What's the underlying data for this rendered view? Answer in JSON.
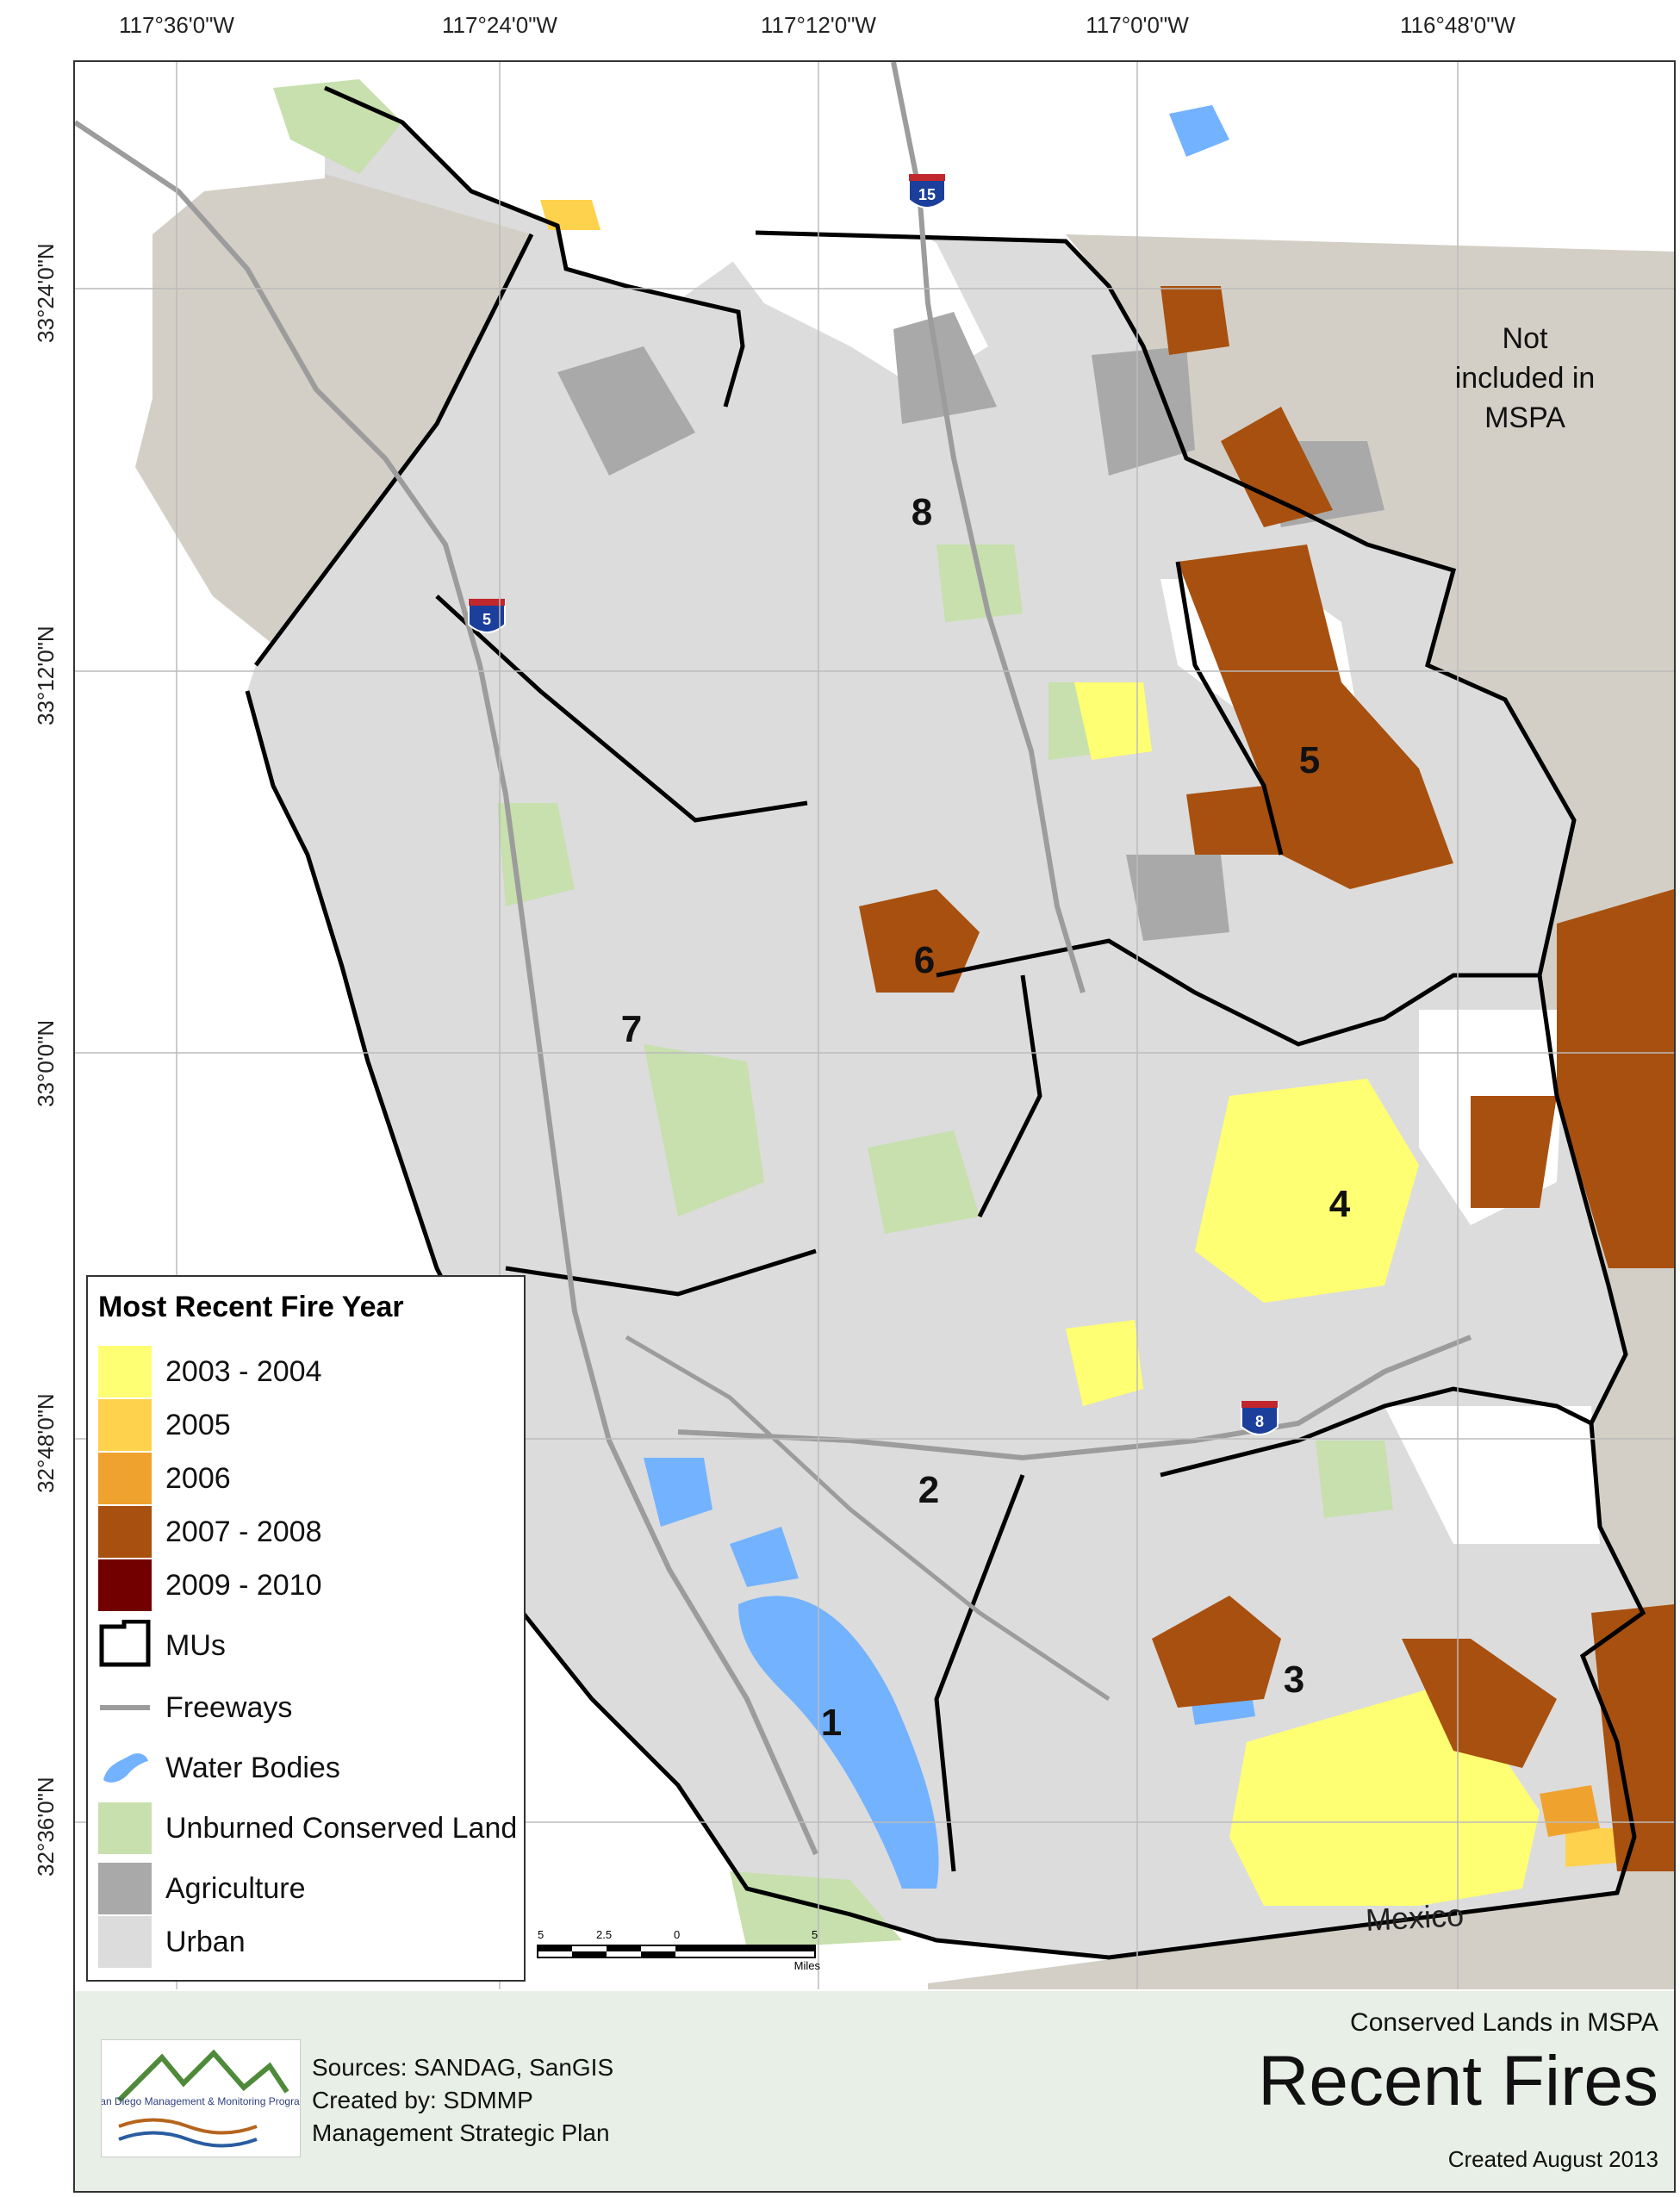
{
  "map": {
    "longitude_labels": [
      "117°36'0\"W",
      "117°24'0\"W",
      "117°12'0\"W",
      "117°0'0\"W",
      "116°48'0\"W"
    ],
    "latitude_labels": [
      "33°24'0\"N",
      "33°12'0\"N",
      "33°0'0\"N",
      "32°48'0\"N",
      "32°36'0\"N"
    ],
    "management_units": [
      "1",
      "2",
      "3",
      "4",
      "5",
      "6",
      "7",
      "8"
    ],
    "freeway_shields": [
      "15",
      "5",
      "8"
    ],
    "not_included_note": "Not included in MSPA",
    "mexico_label": "Mexico"
  },
  "legend": {
    "title": "Most Recent Fire Year",
    "items": [
      {
        "label": "2003 - 2004",
        "color": "#ffff73"
      },
      {
        "label": "2005",
        "color": "#ffd24d"
      },
      {
        "label": "2006",
        "color": "#f0a22f"
      },
      {
        "label": "2007 - 2008",
        "color": "#a8500f"
      },
      {
        "label": "2009 - 2010",
        "color": "#730000"
      },
      {
        "label": "MUs",
        "icon": "mu-boundary-icon"
      },
      {
        "label": "Freeways",
        "icon": "freeway-line-icon",
        "color": "#9c9c9c"
      },
      {
        "label": "Water Bodies",
        "icon": "water-body-icon",
        "color": "#73b2ff"
      },
      {
        "label": "Unburned Conserved Land",
        "color": "#c7e0ad"
      },
      {
        "label": "Agriculture",
        "color": "#a9a9a9"
      },
      {
        "label": "Urban",
        "color": "#dcdcdc"
      }
    ]
  },
  "scale": {
    "ticks": [
      "5",
      "2.5",
      "0",
      "5"
    ],
    "unit": "Miles"
  },
  "footer": {
    "sources": "Sources: SANDAG, SanGIS",
    "created_by": "Created by: SDMMP",
    "plan": "Management Strategic Plan",
    "subtitle": "Conserved Lands in MSPA",
    "title": "Recent Fires",
    "created_date": "Created August 2013",
    "logo_text": "San Diego Management & Monitoring Program"
  },
  "colors": {
    "outside_area": "#d4cfc6",
    "ocean": "#ffffff",
    "urban": "#dcdcdc",
    "agriculture": "#a9a9a9",
    "conserved": "#c7e0ad",
    "water": "#73b2ff",
    "footer_bg": "#e8efe6"
  }
}
